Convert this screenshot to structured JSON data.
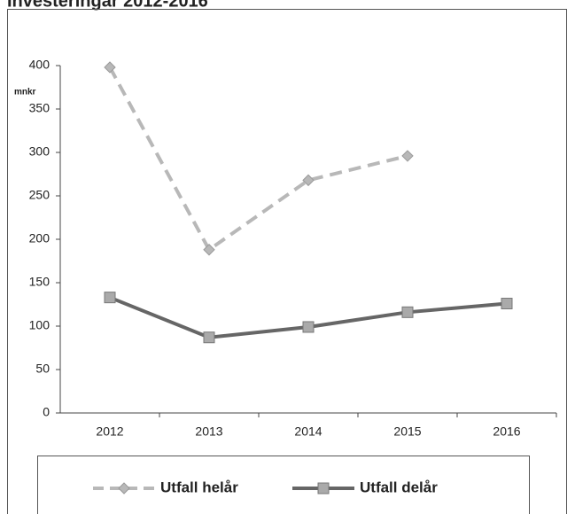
{
  "chart_data": {
    "type": "line",
    "title": "Investeringar 2012-2016",
    "ylabel": "mnkr",
    "categories": [
      "2012",
      "2013",
      "2014",
      "2015",
      "2016"
    ],
    "series": [
      {
        "name": "Utfall helår",
        "color": "#b8b8b8",
        "dashed": true,
        "marker": "diamond",
        "values": [
          398,
          188,
          268,
          296,
          null
        ]
      },
      {
        "name": "Utfall delår",
        "color": "#666666",
        "dashed": false,
        "marker": "square",
        "values": [
          133,
          87,
          99,
          116,
          126
        ]
      }
    ],
    "ylim": [
      0,
      400
    ],
    "yticks": [
      0,
      50,
      100,
      150,
      200,
      250,
      300,
      350,
      400
    ],
    "grid": false,
    "legend": "bottom"
  }
}
